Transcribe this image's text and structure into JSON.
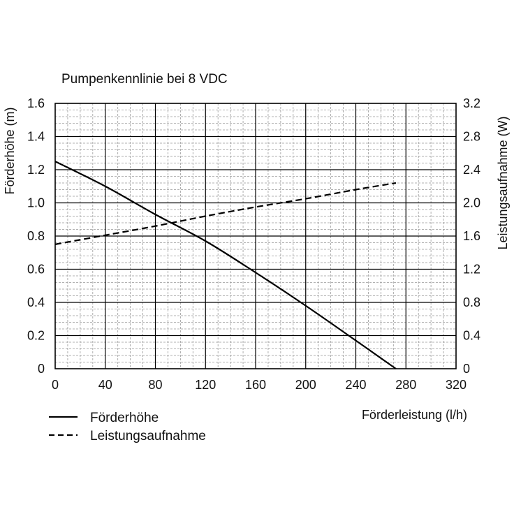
{
  "chart_data": {
    "type": "line",
    "title": "Pumpenkennlinie bei 8 VDC",
    "xlabel": "Förderleistung (l/h)",
    "ylabel_left": "Förderhöhe (m)",
    "ylabel_right": "Leistungsaufnahme (W)",
    "xlim": [
      0,
      320
    ],
    "ylim_left": [
      0,
      1.6
    ],
    "ylim_right": [
      0,
      3.2
    ],
    "x_ticks": [
      "0",
      "40",
      "80",
      "120",
      "160",
      "200",
      "240",
      "280",
      "320"
    ],
    "y_left_ticks": [
      "0",
      "0.2",
      "0.4",
      "0.6",
      "0.8",
      "1.0",
      "1.2",
      "1.4",
      "1.6"
    ],
    "y_right_ticks": [
      "0",
      "0.4",
      "0.8",
      "1.2",
      "1.6",
      "2.0",
      "2.4",
      "2.8",
      "3.2"
    ],
    "grid": true,
    "legend_position": "bottom-left",
    "series": [
      {
        "name": "Förderhöhe",
        "axis": "left",
        "style": "solid",
        "color": "#000000",
        "x": [
          0,
          40,
          80,
          120,
          160,
          200,
          240,
          272
        ],
        "y": [
          1.25,
          1.1,
          0.93,
          0.77,
          0.58,
          0.38,
          0.17,
          0.0
        ]
      },
      {
        "name": "Leistungsaufnahme",
        "axis": "right",
        "style": "dashed",
        "color": "#000000",
        "x": [
          0,
          40,
          80,
          120,
          160,
          200,
          240,
          272
        ],
        "y": [
          1.5,
          1.61,
          1.72,
          1.84,
          1.95,
          2.05,
          2.16,
          2.24
        ]
      }
    ]
  }
}
